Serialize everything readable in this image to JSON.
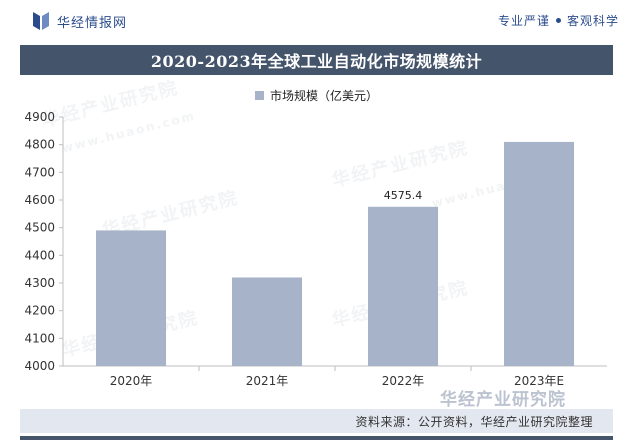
{
  "header": {
    "brand_name": "华经情报网",
    "slogan_left": "专业严谨",
    "slogan_right": "客观科学"
  },
  "watermark": {
    "text": "华经产业研究院",
    "domain": "www.huaon.com"
  },
  "chart_data": {
    "type": "bar",
    "title": "2020-2023年全球工业自动化市场规模统计",
    "categories": [
      "2020年",
      "2021年",
      "2022年",
      "2023年E"
    ],
    "series": [
      {
        "name": "市场规模（亿美元）",
        "values": [
          4490,
          4320,
          4575.4,
          4810
        ],
        "data_labels": [
          null,
          null,
          "4575.4",
          null
        ],
        "color": "#a7b3c9"
      }
    ],
    "yticks": [
      4000,
      4100,
      4200,
      4300,
      4400,
      4500,
      4600,
      4700,
      4800,
      4900
    ],
    "ylim": [
      4000,
      4900
    ],
    "xlabel": "",
    "ylabel": "",
    "grid": false,
    "legend_position": "top-center"
  },
  "footer": {
    "source": "资料来源：公开资料，华经产业研究院整理"
  },
  "colors": {
    "title_bar": "#44546a",
    "brand": "#2b4c8c",
    "bar": "#a7b3c9",
    "footer_bg": "#e3e7ef"
  }
}
